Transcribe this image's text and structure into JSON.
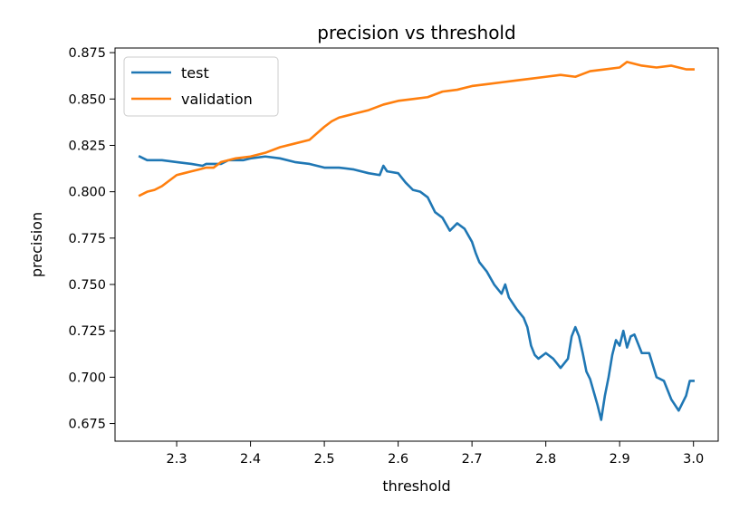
{
  "chart_data": {
    "type": "line",
    "title": "precision vs threshold",
    "xlabel": "threshold",
    "ylabel": "precision",
    "xlim": [
      2.2165,
      3.0335
    ],
    "ylim": [
      0.6655,
      0.8775
    ],
    "xticks": [
      2.3,
      2.4,
      2.5,
      2.6,
      2.7,
      2.8,
      2.9,
      3.0
    ],
    "xtick_labels": [
      "2.3",
      "2.4",
      "2.5",
      "2.6",
      "2.7",
      "2.8",
      "2.9",
      "3.0"
    ],
    "yticks": [
      0.675,
      0.7,
      0.725,
      0.75,
      0.775,
      0.8,
      0.825,
      0.85,
      0.875
    ],
    "ytick_labels": [
      "0.675",
      "0.700",
      "0.725",
      "0.750",
      "0.775",
      "0.800",
      "0.825",
      "0.850",
      "0.875"
    ],
    "grid": false,
    "legend_position": "top-left",
    "series": [
      {
        "name": "test",
        "color": "#1f77b4",
        "points": [
          [
            2.25,
            0.819
          ],
          [
            2.255,
            0.818
          ],
          [
            2.26,
            0.817
          ],
          [
            2.28,
            0.817
          ],
          [
            2.3,
            0.816
          ],
          [
            2.32,
            0.815
          ],
          [
            2.335,
            0.814
          ],
          [
            2.34,
            0.815
          ],
          [
            2.36,
            0.815
          ],
          [
            2.37,
            0.817
          ],
          [
            2.39,
            0.817
          ],
          [
            2.4,
            0.818
          ],
          [
            2.42,
            0.819
          ],
          [
            2.44,
            0.818
          ],
          [
            2.46,
            0.816
          ],
          [
            2.48,
            0.815
          ],
          [
            2.5,
            0.813
          ],
          [
            2.52,
            0.813
          ],
          [
            2.54,
            0.812
          ],
          [
            2.56,
            0.81
          ],
          [
            2.575,
            0.809
          ],
          [
            2.58,
            0.814
          ],
          [
            2.585,
            0.811
          ],
          [
            2.6,
            0.81
          ],
          [
            2.61,
            0.805
          ],
          [
            2.62,
            0.801
          ],
          [
            2.63,
            0.8
          ],
          [
            2.64,
            0.797
          ],
          [
            2.65,
            0.789
          ],
          [
            2.66,
            0.786
          ],
          [
            2.67,
            0.779
          ],
          [
            2.68,
            0.783
          ],
          [
            2.69,
            0.78
          ],
          [
            2.7,
            0.773
          ],
          [
            2.705,
            0.767
          ],
          [
            2.71,
            0.762
          ],
          [
            2.72,
            0.757
          ],
          [
            2.73,
            0.75
          ],
          [
            2.74,
            0.745
          ],
          [
            2.745,
            0.75
          ],
          [
            2.75,
            0.743
          ],
          [
            2.76,
            0.737
          ],
          [
            2.77,
            0.732
          ],
          [
            2.775,
            0.727
          ],
          [
            2.78,
            0.717
          ],
          [
            2.785,
            0.712
          ],
          [
            2.79,
            0.71
          ],
          [
            2.8,
            0.713
          ],
          [
            2.81,
            0.71
          ],
          [
            2.82,
            0.705
          ],
          [
            2.83,
            0.71
          ],
          [
            2.835,
            0.722
          ],
          [
            2.84,
            0.727
          ],
          [
            2.845,
            0.722
          ],
          [
            2.85,
            0.713
          ],
          [
            2.855,
            0.703
          ],
          [
            2.86,
            0.699
          ],
          [
            2.865,
            0.692
          ],
          [
            2.87,
            0.685
          ],
          [
            2.875,
            0.677
          ],
          [
            2.88,
            0.69
          ],
          [
            2.885,
            0.7
          ],
          [
            2.89,
            0.712
          ],
          [
            2.895,
            0.72
          ],
          [
            2.9,
            0.717
          ],
          [
            2.905,
            0.725
          ],
          [
            2.91,
            0.716
          ],
          [
            2.915,
            0.722
          ],
          [
            2.92,
            0.723
          ],
          [
            2.93,
            0.713
          ],
          [
            2.94,
            0.713
          ],
          [
            2.95,
            0.7
          ],
          [
            2.96,
            0.698
          ],
          [
            2.97,
            0.688
          ],
          [
            2.98,
            0.682
          ],
          [
            2.99,
            0.69
          ],
          [
            2.995,
            0.698
          ],
          [
            3.0,
            0.698
          ]
        ]
      },
      {
        "name": "validation",
        "color": "#ff7f0e",
        "points": [
          [
            2.25,
            0.798
          ],
          [
            2.26,
            0.8
          ],
          [
            2.27,
            0.801
          ],
          [
            2.28,
            0.803
          ],
          [
            2.29,
            0.806
          ],
          [
            2.3,
            0.809
          ],
          [
            2.31,
            0.81
          ],
          [
            2.32,
            0.811
          ],
          [
            2.33,
            0.812
          ],
          [
            2.34,
            0.813
          ],
          [
            2.35,
            0.813
          ],
          [
            2.36,
            0.816
          ],
          [
            2.37,
            0.817
          ],
          [
            2.38,
            0.818
          ],
          [
            2.4,
            0.819
          ],
          [
            2.42,
            0.821
          ],
          [
            2.44,
            0.824
          ],
          [
            2.46,
            0.826
          ],
          [
            2.48,
            0.828
          ],
          [
            2.5,
            0.835
          ],
          [
            2.51,
            0.838
          ],
          [
            2.52,
            0.84
          ],
          [
            2.54,
            0.842
          ],
          [
            2.56,
            0.844
          ],
          [
            2.58,
            0.847
          ],
          [
            2.6,
            0.849
          ],
          [
            2.62,
            0.85
          ],
          [
            2.64,
            0.851
          ],
          [
            2.66,
            0.854
          ],
          [
            2.68,
            0.855
          ],
          [
            2.7,
            0.857
          ],
          [
            2.72,
            0.858
          ],
          [
            2.74,
            0.859
          ],
          [
            2.76,
            0.86
          ],
          [
            2.78,
            0.861
          ],
          [
            2.8,
            0.862
          ],
          [
            2.82,
            0.863
          ],
          [
            2.84,
            0.862
          ],
          [
            2.86,
            0.865
          ],
          [
            2.88,
            0.866
          ],
          [
            2.9,
            0.867
          ],
          [
            2.91,
            0.87
          ],
          [
            2.93,
            0.868
          ],
          [
            2.95,
            0.867
          ],
          [
            2.97,
            0.868
          ],
          [
            2.99,
            0.866
          ],
          [
            3.0,
            0.866
          ]
        ]
      }
    ]
  }
}
